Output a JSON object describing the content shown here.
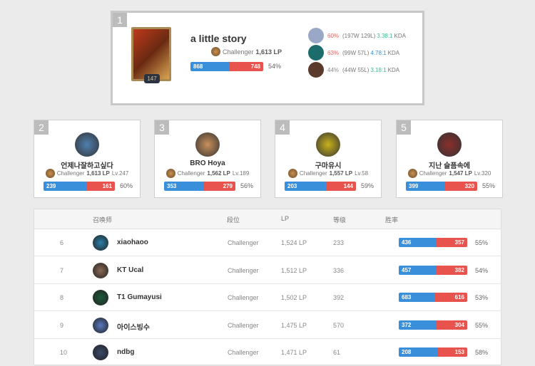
{
  "top": {
    "rank": "1",
    "name": "a little story",
    "tier": "Challenger",
    "lp": "1,613 LP",
    "level": "147",
    "wins": 868,
    "losses": 748,
    "winrate": "54%",
    "champions": [
      {
        "wr": "60%",
        "record": "(197W 129L)",
        "kda": "3.38:1",
        "kda_label": "KDA",
        "wr_color": "#e06666",
        "kda_color": "#3cb98e",
        "icon_color": "#9aa8c7"
      },
      {
        "wr": "63%",
        "record": "(99W 57L)",
        "kda": "4.78:1",
        "kda_label": "KDA",
        "wr_color": "#e06666",
        "kda_color": "#3a8fdb",
        "icon_color": "#1c6c6c"
      },
      {
        "wr": "44%",
        "record": "(44W 55L)",
        "kda": "3.18:1",
        "kda_label": "KDA",
        "wr_color": "#888888",
        "kda_color": "#3cb98e",
        "icon_color": "#5a3a2a"
      }
    ]
  },
  "cards": [
    {
      "rank": "2",
      "name": "언제나잘하고싶다",
      "tier": "Challenger",
      "lp": "1,613 LP",
      "level": "Lv.247",
      "wins": 239,
      "losses": 161,
      "winrate": "60%",
      "icon_color": "#4f7fb0"
    },
    {
      "rank": "3",
      "name": "BRO Hoya",
      "tier": "Challenger",
      "lp": "1,562 LP",
      "level": "Lv.189",
      "wins": 353,
      "losses": 279,
      "winrate": "56%",
      "icon_color": "#c9905a"
    },
    {
      "rank": "4",
      "name": "구마유시",
      "tier": "Challenger",
      "lp": "1,557 LP",
      "level": "Lv.58",
      "wins": 203,
      "losses": 144,
      "winrate": "59%",
      "icon_color": "#c9b21a"
    },
    {
      "rank": "5",
      "name": "지난 슬픔속에",
      "tier": "Challenger",
      "lp": "1,547 LP",
      "level": "Lv.320",
      "wins": 399,
      "losses": 320,
      "winrate": "55%",
      "icon_color": "#8a2e2a"
    }
  ],
  "table": {
    "headers": [
      "召唤师",
      "段位",
      "LP",
      "等级",
      "胜率"
    ],
    "rows": [
      {
        "rank": "6",
        "name": "xiaohaoo",
        "tier": "Challenger",
        "lp": "1,524 LP",
        "level": "233",
        "wins": 436,
        "losses": 357,
        "winrate": "55%",
        "icon_color": "#2a7fa8"
      },
      {
        "rank": "7",
        "name": "KT Ucal",
        "tier": "Challenger",
        "lp": "1,512 LP",
        "level": "336",
        "wins": 457,
        "losses": 382,
        "winrate": "54%",
        "icon_color": "#8a6a55"
      },
      {
        "rank": "8",
        "name": "T1 Gumayusi",
        "tier": "Challenger",
        "lp": "1,502 LP",
        "level": "392",
        "wins": 683,
        "losses": 616,
        "winrate": "53%",
        "icon_color": "#1e5a3a"
      },
      {
        "rank": "9",
        "name": "아이스빙수",
        "tier": "Challenger",
        "lp": "1,475 LP",
        "level": "570",
        "wins": 372,
        "losses": 304,
        "winrate": "55%",
        "icon_color": "#5a7ac0"
      },
      {
        "rank": "10",
        "name": "ndbg",
        "tier": "Challenger",
        "lp": "1,471 LP",
        "level": "61",
        "wins": 208,
        "losses": 153,
        "winrate": "58%",
        "icon_color": "#3a4a6a"
      }
    ]
  }
}
